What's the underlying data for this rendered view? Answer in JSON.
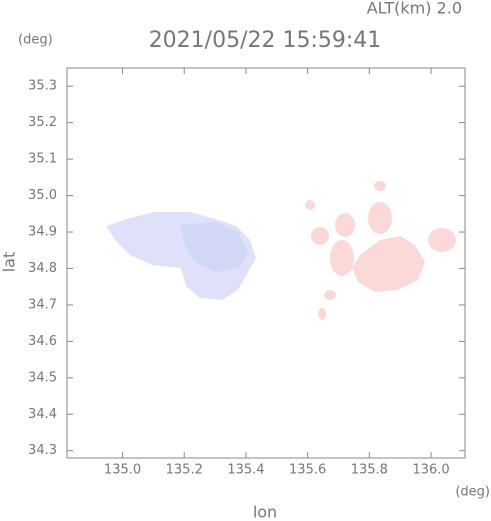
{
  "chart_data": {
    "type": "map",
    "title": "2021/05/22 15:59:41",
    "annotation": "ALT(km) 2.0",
    "xlabel": "lon",
    "ylabel": "lat",
    "xunit": "(deg)",
    "yunit": "(deg)",
    "xlim": [
      134.82,
      136.11
    ],
    "ylim": [
      34.28,
      35.35
    ],
    "xticks": [
      {
        "value": 135,
        "label": "135.0"
      },
      135.2,
      135.4,
      135.6,
      135.8,
      {
        "value": 136,
        "label": "136.0"
      }
    ],
    "yticks": [
      34.3,
      34.4,
      34.5,
      34.6,
      34.7,
      34.8,
      34.9,
      {
        "value": 35,
        "label": "35.0"
      },
      35.1,
      35.2,
      35.3
    ]
  }
}
